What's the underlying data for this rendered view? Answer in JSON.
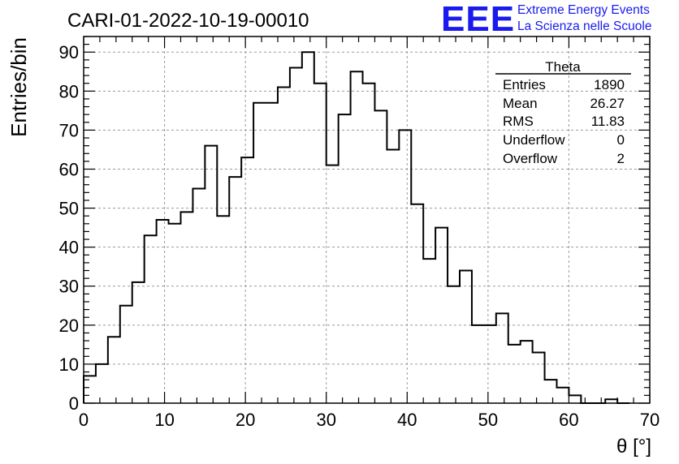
{
  "chart_data": {
    "type": "histogram",
    "title": "CARI-01-2022-10-19-00010",
    "xlabel": "θ [°]",
    "ylabel": "Entries/bin",
    "xlim": [
      0,
      70
    ],
    "ylim": [
      0,
      94
    ],
    "x_ticks": [
      0,
      10,
      20,
      30,
      40,
      50,
      60,
      70
    ],
    "y_ticks": [
      0,
      10,
      20,
      30,
      40,
      50,
      60,
      70,
      80,
      90
    ],
    "grid": true,
    "bin_width": 1.5,
    "bin_start": 0,
    "values": [
      7,
      10,
      17,
      25,
      31,
      43,
      47,
      46,
      49,
      55,
      66,
      48,
      58,
      63,
      77,
      77,
      81,
      86,
      90,
      82,
      61,
      74,
      85,
      82,
      75,
      65,
      70,
      51,
      37,
      45,
      30,
      34,
      20,
      20,
      23,
      15,
      16,
      13,
      6,
      4,
      2,
      0,
      0,
      1,
      0
    ]
  },
  "stats_box": {
    "title": "Theta",
    "rows": [
      {
        "label": "Entries",
        "value": "1890"
      },
      {
        "label": "Mean",
        "value": "26.27"
      },
      {
        "label": "RMS",
        "value": "11.83"
      },
      {
        "label": "Underflow",
        "value": "0"
      },
      {
        "label": "Overflow",
        "value": "2"
      }
    ]
  },
  "logo": {
    "mark": "EEE",
    "line1": "Extreme Energy Events",
    "line2": "La Scienza nelle Scuole",
    "color": "#1a1aee"
  }
}
